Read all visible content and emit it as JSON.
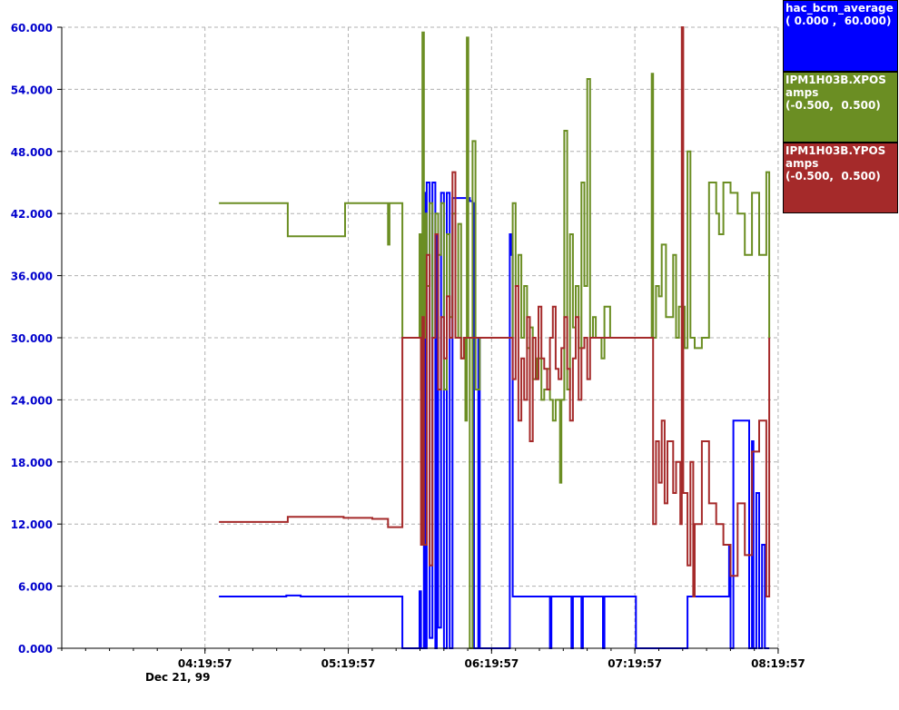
{
  "chart_data": {
    "type": "line",
    "yaxis": {
      "range": [
        0,
        60
      ],
      "ticks": [
        "0.000",
        "6.000",
        "12.000",
        "18.000",
        "24.000",
        "30.000",
        "36.000",
        "42.000",
        "48.000",
        "54.000",
        "60.000"
      ],
      "tick_color": "#0000cc"
    },
    "xaxis": {
      "range_hours": [
        3.333,
        8.333
      ],
      "ticks": [
        {
          "t": 4.3325,
          "label": "04:19:57"
        },
        {
          "t": 5.3325,
          "label": "05:19:57"
        },
        {
          "t": 6.3325,
          "label": "06:19:57"
        },
        {
          "t": 7.3325,
          "label": "07:19:57"
        },
        {
          "t": 8.3325,
          "label": "08:19:57"
        }
      ],
      "date_label": "Dec 21, 99"
    },
    "grid": true,
    "legend_position": "right",
    "series": [
      {
        "name": "hac_bcm_average",
        "color": "#0000ff",
        "legend_lines": [
          "hac_bcm_average",
          "",
          "( 0.000 ,  60.000)"
        ],
        "points": [
          [
            4.43,
            5
          ],
          [
            4.8,
            5
          ],
          [
            4.9,
            5.1
          ],
          [
            5.0,
            5
          ],
          [
            5.3,
            5
          ],
          [
            5.5,
            5
          ],
          [
            5.7,
            5
          ],
          [
            5.71,
            0
          ],
          [
            5.82,
            0
          ],
          [
            5.83,
            5.5
          ],
          [
            5.84,
            0
          ],
          [
            5.86,
            44
          ],
          [
            5.87,
            0
          ],
          [
            5.88,
            45
          ],
          [
            5.9,
            1
          ],
          [
            5.92,
            45
          ],
          [
            5.94,
            0
          ],
          [
            5.95,
            40
          ],
          [
            5.96,
            2
          ],
          [
            5.98,
            44
          ],
          [
            6.0,
            0
          ],
          [
            6.02,
            44
          ],
          [
            6.04,
            0
          ],
          [
            6.06,
            43.5
          ],
          [
            6.1,
            43.5
          ],
          [
            6.14,
            43.5
          ],
          [
            6.18,
            43.2
          ],
          [
            6.2,
            43
          ],
          [
            6.21,
            0
          ],
          [
            6.23,
            0
          ],
          [
            6.24,
            30
          ],
          [
            6.25,
            0
          ],
          [
            6.45,
            0
          ],
          [
            6.46,
            40
          ],
          [
            6.47,
            38
          ],
          [
            6.48,
            5
          ],
          [
            6.52,
            5
          ],
          [
            6.7,
            5
          ],
          [
            6.73,
            5
          ],
          [
            6.74,
            0
          ],
          [
            6.75,
            5
          ],
          [
            6.88,
            5
          ],
          [
            6.89,
            0
          ],
          [
            6.9,
            5
          ],
          [
            6.95,
            5
          ],
          [
            6.96,
            0
          ],
          [
            6.97,
            5
          ],
          [
            7.1,
            5
          ],
          [
            7.11,
            0
          ],
          [
            7.12,
            5
          ],
          [
            7.33,
            5
          ],
          [
            7.34,
            0
          ],
          [
            7.68,
            0
          ],
          [
            7.7,
            5
          ],
          [
            7.85,
            5
          ],
          [
            7.86,
            5
          ],
          [
            7.97,
            5
          ],
          [
            7.99,
            10
          ],
          [
            8.0,
            0
          ],
          [
            8.02,
            22
          ],
          [
            8.12,
            22
          ],
          [
            8.13,
            0
          ],
          [
            8.15,
            20
          ],
          [
            8.16,
            0
          ],
          [
            8.18,
            15
          ],
          [
            8.2,
            0
          ],
          [
            8.22,
            10
          ],
          [
            8.24,
            0
          ],
          [
            8.27,
            0
          ]
        ]
      },
      {
        "name": "IPM1H03B.XPOS",
        "color": "#6b8e23",
        "legend_lines": [
          "IPM1H03B.XPOS",
          "amps",
          "(-0.500,  0.500)"
        ],
        "points": [
          [
            4.43,
            43
          ],
          [
            4.7,
            43
          ],
          [
            4.9,
            43
          ],
          [
            4.91,
            39.8
          ],
          [
            5.1,
            39.8
          ],
          [
            5.3,
            39.8
          ],
          [
            5.31,
            43
          ],
          [
            5.5,
            43
          ],
          [
            5.6,
            43
          ],
          [
            5.61,
            39
          ],
          [
            5.62,
            43
          ],
          [
            5.7,
            43
          ],
          [
            5.71,
            30
          ],
          [
            5.82,
            30
          ],
          [
            5.83,
            40
          ],
          [
            5.84,
            25
          ],
          [
            5.85,
            59.5
          ],
          [
            5.86,
            30
          ],
          [
            5.87,
            42
          ],
          [
            5.88,
            35
          ],
          [
            5.9,
            43
          ],
          [
            5.92,
            30
          ],
          [
            5.94,
            42
          ],
          [
            5.96,
            38
          ],
          [
            5.98,
            43
          ],
          [
            6.0,
            25
          ],
          [
            6.02,
            40
          ],
          [
            6.04,
            32
          ],
          [
            6.06,
            42
          ],
          [
            6.08,
            30
          ],
          [
            6.1,
            41
          ],
          [
            6.12,
            28
          ],
          [
            6.14,
            30
          ],
          [
            6.15,
            22
          ],
          [
            6.16,
            59
          ],
          [
            6.17,
            30
          ],
          [
            6.18,
            0
          ],
          [
            6.2,
            49
          ],
          [
            6.22,
            25
          ],
          [
            6.25,
            30
          ],
          [
            6.45,
            30
          ],
          [
            6.48,
            43
          ],
          [
            6.5,
            35
          ],
          [
            6.52,
            38
          ],
          [
            6.54,
            30
          ],
          [
            6.56,
            35
          ],
          [
            6.58,
            29
          ],
          [
            6.6,
            31
          ],
          [
            6.62,
            26
          ],
          [
            6.65,
            28
          ],
          [
            6.68,
            24
          ],
          [
            6.7,
            25
          ],
          [
            6.72,
            27
          ],
          [
            6.74,
            24
          ],
          [
            6.76,
            22
          ],
          [
            6.78,
            24
          ],
          [
            6.8,
            24
          ],
          [
            6.81,
            16
          ],
          [
            6.82,
            24
          ],
          [
            6.84,
            50
          ],
          [
            6.86,
            25
          ],
          [
            6.88,
            40
          ],
          [
            6.9,
            31
          ],
          [
            6.92,
            35
          ],
          [
            6.94,
            29
          ],
          [
            6.96,
            45
          ],
          [
            6.98,
            35
          ],
          [
            7.0,
            55
          ],
          [
            7.02,
            30
          ],
          [
            7.04,
            32
          ],
          [
            7.06,
            30
          ],
          [
            7.08,
            30
          ],
          [
            7.1,
            28
          ],
          [
            7.12,
            33
          ],
          [
            7.16,
            30
          ],
          [
            7.19,
            30
          ],
          [
            7.2,
            30
          ],
          [
            7.35,
            30
          ],
          [
            7.44,
            30
          ],
          [
            7.45,
            55.5
          ],
          [
            7.46,
            30
          ],
          [
            7.48,
            35
          ],
          [
            7.5,
            34
          ],
          [
            7.52,
            39
          ],
          [
            7.55,
            32
          ],
          [
            7.6,
            38
          ],
          [
            7.62,
            30
          ],
          [
            7.64,
            33
          ],
          [
            7.68,
            29
          ],
          [
            7.7,
            48
          ],
          [
            7.72,
            30
          ],
          [
            7.75,
            29
          ],
          [
            7.8,
            30
          ],
          [
            7.85,
            45
          ],
          [
            7.9,
            42
          ],
          [
            7.92,
            40
          ],
          [
            7.95,
            45
          ],
          [
            8.0,
            44
          ],
          [
            8.05,
            42
          ],
          [
            8.1,
            38
          ],
          [
            8.15,
            44
          ],
          [
            8.2,
            38
          ],
          [
            8.25,
            46
          ],
          [
            8.27,
            30
          ]
        ]
      },
      {
        "name": "IPM1H03B.YPOS",
        "color": "#a52a2a",
        "legend_lines": [
          "IPM1H03B.YPOS",
          "amps",
          "(-0.500,  0.500)"
        ],
        "points": [
          [
            4.43,
            12.2
          ],
          [
            4.7,
            12.2
          ],
          [
            4.9,
            12.2
          ],
          [
            4.91,
            12.7
          ],
          [
            5.1,
            12.7
          ],
          [
            5.3,
            12.6
          ],
          [
            5.5,
            12.5
          ],
          [
            5.6,
            12.5
          ],
          [
            5.61,
            11.7
          ],
          [
            5.7,
            11.7
          ],
          [
            5.71,
            30
          ],
          [
            5.82,
            30
          ],
          [
            5.84,
            10
          ],
          [
            5.85,
            32
          ],
          [
            5.86,
            10
          ],
          [
            5.88,
            38
          ],
          [
            5.9,
            8
          ],
          [
            5.92,
            30
          ],
          [
            5.94,
            40
          ],
          [
            5.96,
            25
          ],
          [
            5.98,
            32
          ],
          [
            6.0,
            28
          ],
          [
            6.02,
            34
          ],
          [
            6.04,
            30
          ],
          [
            6.06,
            46
          ],
          [
            6.08,
            30
          ],
          [
            6.1,
            30
          ],
          [
            6.12,
            28
          ],
          [
            6.14,
            30
          ],
          [
            6.16,
            30
          ],
          [
            6.2,
            30
          ],
          [
            6.45,
            30
          ],
          [
            6.48,
            26
          ],
          [
            6.5,
            35
          ],
          [
            6.52,
            22
          ],
          [
            6.54,
            28
          ],
          [
            6.56,
            24
          ],
          [
            6.58,
            32
          ],
          [
            6.6,
            20
          ],
          [
            6.62,
            30
          ],
          [
            6.64,
            26
          ],
          [
            6.66,
            33
          ],
          [
            6.68,
            28
          ],
          [
            6.7,
            27
          ],
          [
            6.72,
            25
          ],
          [
            6.74,
            30
          ],
          [
            6.76,
            33
          ],
          [
            6.78,
            27
          ],
          [
            6.8,
            26
          ],
          [
            6.82,
            29
          ],
          [
            6.84,
            32
          ],
          [
            6.86,
            27
          ],
          [
            6.88,
            22
          ],
          [
            6.9,
            28
          ],
          [
            6.92,
            32
          ],
          [
            6.94,
            24
          ],
          [
            6.96,
            29
          ],
          [
            6.98,
            30
          ],
          [
            7.0,
            26
          ],
          [
            7.02,
            30
          ],
          [
            7.05,
            30
          ],
          [
            7.1,
            30
          ],
          [
            7.2,
            30
          ],
          [
            7.35,
            30
          ],
          [
            7.44,
            30
          ],
          [
            7.46,
            12
          ],
          [
            7.48,
            20
          ],
          [
            7.5,
            16
          ],
          [
            7.52,
            22
          ],
          [
            7.54,
            14
          ],
          [
            7.56,
            20
          ],
          [
            7.6,
            15
          ],
          [
            7.62,
            18
          ],
          [
            7.65,
            12
          ],
          [
            7.66,
            60
          ],
          [
            7.67,
            15
          ],
          [
            7.7,
            8
          ],
          [
            7.72,
            18
          ],
          [
            7.74,
            5
          ],
          [
            7.75,
            12
          ],
          [
            7.8,
            20
          ],
          [
            7.85,
            14
          ],
          [
            7.9,
            12
          ],
          [
            7.95,
            10
          ],
          [
            8.0,
            7
          ],
          [
            8.05,
            14
          ],
          [
            8.1,
            9
          ],
          [
            8.15,
            19
          ],
          [
            8.2,
            22
          ],
          [
            8.25,
            5
          ],
          [
            8.27,
            30
          ]
        ]
      }
    ]
  }
}
